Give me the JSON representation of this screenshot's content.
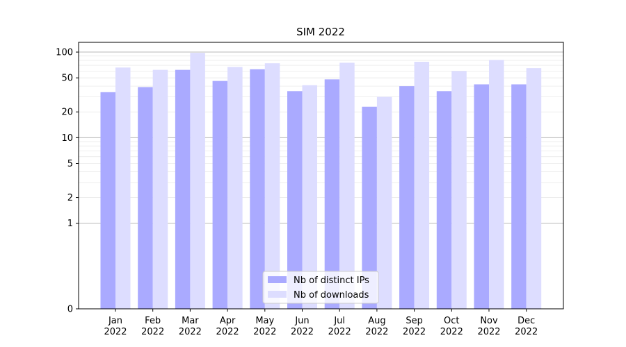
{
  "chart_data": {
    "type": "bar",
    "title": "SIM 2022",
    "xlabel": "",
    "ylabel": "",
    "scale": "symlog",
    "ylim": [
      0,
      130
    ],
    "yticks": [
      0,
      1,
      2,
      5,
      10,
      20,
      50,
      100
    ],
    "ytick_labels": [
      "0",
      "1",
      "2",
      "5",
      "10",
      "20",
      "50",
      "100"
    ],
    "grid": true,
    "legend": "bottom-center",
    "categories": [
      {
        "month": "Jan",
        "year": "2022"
      },
      {
        "month": "Feb",
        "year": "2022"
      },
      {
        "month": "Mar",
        "year": "2022"
      },
      {
        "month": "Apr",
        "year": "2022"
      },
      {
        "month": "May",
        "year": "2022"
      },
      {
        "month": "Jun",
        "year": "2022"
      },
      {
        "month": "Jul",
        "year": "2022"
      },
      {
        "month": "Aug",
        "year": "2022"
      },
      {
        "month": "Sep",
        "year": "2022"
      },
      {
        "month": "Oct",
        "year": "2022"
      },
      {
        "month": "Nov",
        "year": "2022"
      },
      {
        "month": "Dec",
        "year": "2022"
      }
    ],
    "series": [
      {
        "name": "Nb of distinct IPs",
        "color": "#aaaaff",
        "values": [
          34,
          39,
          62,
          46,
          63,
          35,
          48,
          23,
          40,
          35,
          42,
          42
        ]
      },
      {
        "name": "Nb of downloads",
        "color": "#ddddff",
        "values": [
          66,
          62,
          98,
          67,
          74,
          41,
          75,
          30,
          77,
          60,
          81,
          65
        ]
      }
    ]
  }
}
